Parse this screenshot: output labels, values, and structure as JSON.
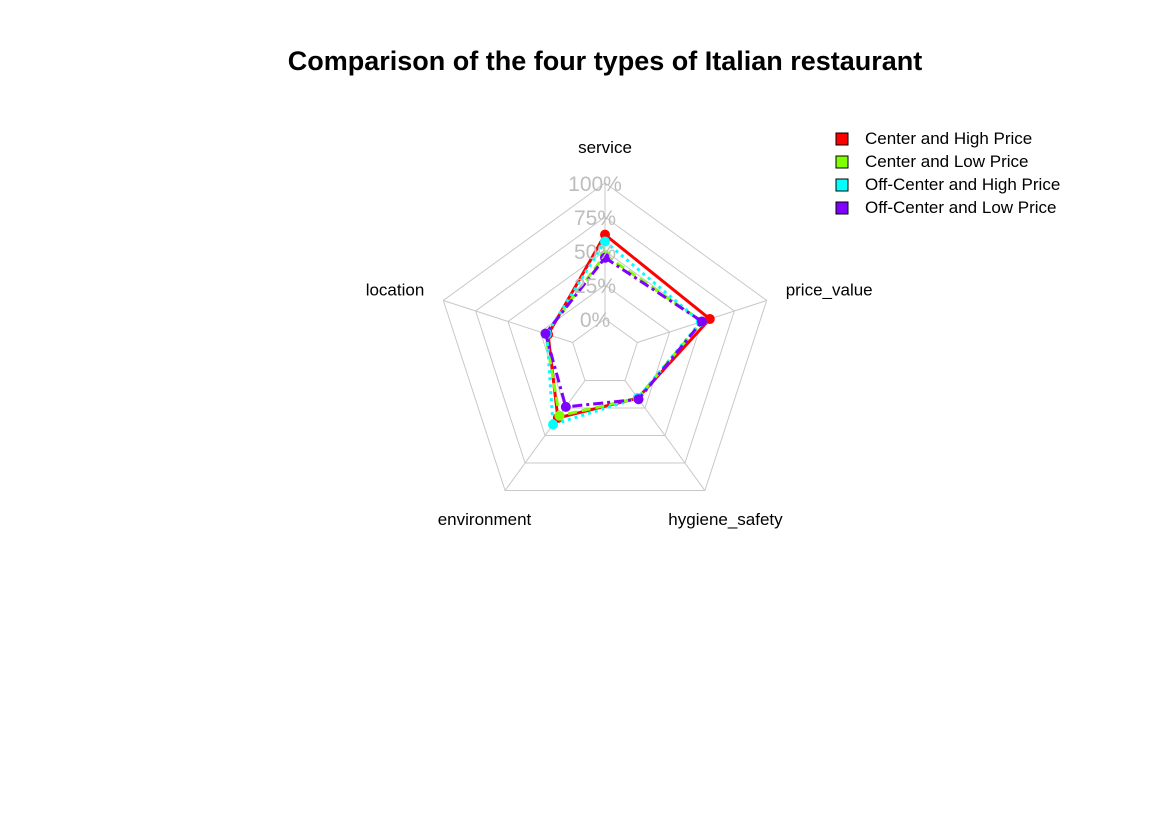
{
  "chart_data": {
    "type": "radar",
    "title": "Comparison of the four types of Italian restaurant",
    "axes": [
      "service",
      "price_value",
      "hygiene_safety",
      "environment",
      "location"
    ],
    "tick_labels": [
      "0%",
      "25%",
      "50%",
      "75%",
      "100%"
    ],
    "range": [
      0,
      100
    ],
    "grid": true,
    "legend_position": "top-right",
    "series": [
      {
        "name": "Center and High Price",
        "color": "#FF0000",
        "line": "solid",
        "values": [
          62,
          56,
          16,
          34,
          19
        ]
      },
      {
        "name": "Center and Low Price",
        "color": "#80FF00",
        "line": "dashed",
        "values": [
          47,
          50,
          16,
          32,
          21
        ]
      },
      {
        "name": "Off-Center and High Price",
        "color": "#00FFFF",
        "line": "dotted",
        "values": [
          57,
          49,
          16,
          40,
          20
        ]
      },
      {
        "name": "Off-Center and Low Price",
        "color": "#8000FF",
        "line": "dashdot",
        "values": [
          45,
          50,
          17,
          24,
          21
        ]
      }
    ]
  }
}
